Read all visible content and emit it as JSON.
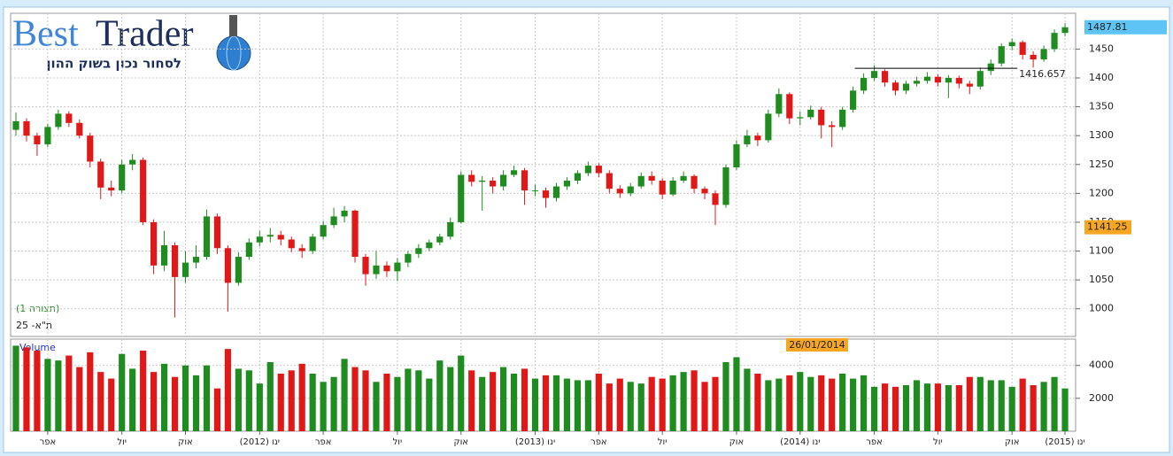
{
  "logo": {
    "brand_part1": "Best",
    "brand_part2": "Trader",
    "slogan": "לסחור נכון בשוק ההון"
  },
  "chart_data": {
    "type": "candlestick",
    "series_label": "(תצורה 1)",
    "instrument": "ת\"א- 25",
    "up_color": "#1e8c1e",
    "down_color": "#e01818",
    "grid": true,
    "categories": [
      null,
      null,
      null,
      "אפר",
      null,
      null,
      null,
      null,
      null,
      null,
      "יול",
      null,
      null,
      null,
      null,
      null,
      "אוק",
      null,
      null,
      null,
      null,
      null,
      null,
      "(2012) ינו",
      null,
      null,
      null,
      null,
      null,
      "אפר",
      null,
      null,
      null,
      null,
      null,
      null,
      "יול",
      null,
      null,
      null,
      null,
      null,
      "אוק",
      null,
      null,
      null,
      null,
      null,
      null,
      "(2013) ינו",
      null,
      null,
      null,
      null,
      null,
      "אפר",
      null,
      null,
      null,
      null,
      null,
      "יול",
      null,
      null,
      null,
      null,
      null,
      null,
      "אוק",
      null,
      null,
      null,
      null,
      null,
      "(2014) ינו",
      null,
      null,
      null,
      null,
      null,
      null,
      "אפר",
      null,
      null,
      null,
      null,
      null,
      "יול",
      null,
      null,
      null,
      null,
      null,
      null,
      "אוק",
      null,
      null,
      null,
      null,
      "(2015) ינו"
    ],
    "open": [
      1310,
      1325,
      1300,
      1285,
      1315,
      1338,
      1322,
      1300,
      1255,
      1210,
      1205,
      1250,
      1258,
      1150,
      1075,
      1110,
      1055,
      1080,
      1090,
      1160,
      1105,
      1045,
      1090,
      1115,
      1125,
      1128,
      1120,
      1105,
      1100,
      1125,
      1145,
      1160,
      1170,
      1090,
      1060,
      1075,
      1065,
      1080,
      1095,
      1105,
      1115,
      1125,
      1150,
      1232,
      1220,
      1222,
      1212,
      1232,
      1240,
      1205,
      1205,
      1192,
      1212,
      1222,
      1235,
      1248,
      1235,
      1208,
      1200,
      1212,
      1230,
      1222,
      1198,
      1222,
      1230,
      1208,
      1200,
      1180,
      1245,
      1285,
      1300,
      1292,
      1338,
      1372,
      1330,
      1332,
      1345,
      1318,
      1315,
      1345,
      1378,
      1400,
      1412,
      1392,
      1378,
      1390,
      1395,
      1402,
      1392,
      1400,
      1390,
      1385,
      1412,
      1425,
      1455,
      1462,
      1440,
      1432,
      1450,
      1478
    ],
    "high": [
      1340,
      1330,
      1305,
      1320,
      1345,
      1342,
      1328,
      1305,
      1260,
      1222,
      1258,
      1268,
      1262,
      1155,
      1135,
      1115,
      1100,
      1110,
      1172,
      1165,
      1110,
      1098,
      1122,
      1135,
      1140,
      1135,
      1125,
      1112,
      1130,
      1152,
      1175,
      1178,
      1172,
      1095,
      1100,
      1082,
      1088,
      1100,
      1112,
      1120,
      1130,
      1158,
      1238,
      1240,
      1230,
      1228,
      1240,
      1248,
      1244,
      1215,
      1210,
      1218,
      1228,
      1240,
      1255,
      1252,
      1240,
      1214,
      1218,
      1236,
      1238,
      1226,
      1228,
      1238,
      1233,
      1212,
      1205,
      1250,
      1292,
      1310,
      1305,
      1345,
      1382,
      1375,
      1342,
      1352,
      1350,
      1325,
      1350,
      1385,
      1408,
      1422,
      1415,
      1396,
      1395,
      1402,
      1410,
      1406,
      1405,
      1404,
      1395,
      1418,
      1432,
      1460,
      1468,
      1465,
      1446,
      1456,
      1484,
      1495
    ],
    "low": [
      1300,
      1290,
      1265,
      1280,
      1310,
      1315,
      1295,
      1245,
      1190,
      1195,
      1200,
      1240,
      1145,
      1060,
      1065,
      985,
      1045,
      1070,
      1085,
      1095,
      995,
      1040,
      1085,
      1108,
      1115,
      1110,
      1098,
      1088,
      1095,
      1120,
      1140,
      1150,
      1080,
      1040,
      1052,
      1055,
      1048,
      1072,
      1088,
      1100,
      1110,
      1120,
      1148,
      1212,
      1170,
      1200,
      1205,
      1228,
      1180,
      1195,
      1175,
      1186,
      1206,
      1216,
      1230,
      1228,
      1200,
      1192,
      1195,
      1208,
      1215,
      1190,
      1195,
      1218,
      1200,
      1190,
      1145,
      1175,
      1240,
      1280,
      1282,
      1288,
      1332,
      1320,
      1318,
      1328,
      1295,
      1280,
      1310,
      1340,
      1372,
      1395,
      1385,
      1370,
      1372,
      1385,
      1390,
      1385,
      1365,
      1382,
      1372,
      1380,
      1405,
      1420,
      1448,
      1432,
      1418,
      1428,
      1445,
      1472
    ],
    "close": [
      1325,
      1300,
      1285,
      1315,
      1338,
      1322,
      1300,
      1255,
      1210,
      1205,
      1250,
      1258,
      1150,
      1075,
      1110,
      1055,
      1080,
      1090,
      1160,
      1105,
      1045,
      1090,
      1115,
      1125,
      1128,
      1120,
      1105,
      1100,
      1125,
      1145,
      1160,
      1170,
      1090,
      1060,
      1075,
      1065,
      1080,
      1095,
      1105,
      1115,
      1125,
      1150,
      1232,
      1220,
      1222,
      1212,
      1232,
      1240,
      1205,
      1205,
      1192,
      1212,
      1222,
      1235,
      1248,
      1235,
      1208,
      1200,
      1212,
      1230,
      1222,
      1198,
      1222,
      1230,
      1208,
      1200,
      1180,
      1245,
      1285,
      1300,
      1292,
      1338,
      1372,
      1330,
      1332,
      1345,
      1318,
      1315,
      1345,
      1378,
      1400,
      1412,
      1392,
      1378,
      1390,
      1395,
      1402,
      1392,
      1400,
      1390,
      1385,
      1412,
      1425,
      1455,
      1462,
      1440,
      1432,
      1450,
      1478,
      1487.81
    ],
    "ylim": [
      952,
      1512
    ],
    "yticks": [
      1000,
      1050,
      1100,
      1150,
      1200,
      1250,
      1300,
      1350,
      1400,
      1450
    ],
    "level": 1416.657,
    "crosshair_price": 1141.25,
    "crosshair_date": "26/01/2014",
    "volume": {
      "name": "Volume",
      "values": [
        5200,
        5100,
        4900,
        4400,
        4300,
        4600,
        3900,
        4800,
        3600,
        3200,
        4700,
        3800,
        4900,
        3600,
        4100,
        3300,
        4000,
        3400,
        4000,
        2600,
        5000,
        3800,
        3700,
        2900,
        4200,
        3500,
        3700,
        4100,
        3500,
        3000,
        3300,
        4400,
        3900,
        3700,
        3000,
        3500,
        3300,
        3800,
        3700,
        3200,
        4300,
        3900,
        4600,
        3700,
        3300,
        3600,
        3900,
        3500,
        3800,
        3200,
        3400,
        3400,
        3200,
        3100,
        3100,
        3500,
        2900,
        3200,
        3000,
        2900,
        3300,
        3200,
        3400,
        3600,
        3700,
        3000,
        3300,
        4200,
        4500,
        3800,
        3500,
        3100,
        3200,
        3400,
        3600,
        3300,
        3400,
        3200,
        3500,
        3200,
        3400,
        2700,
        2900,
        2700,
        2800,
        3100,
        2900,
        2900,
        2800,
        2800,
        3300,
        3300,
        3100,
        3100,
        2700,
        3200,
        2800,
        3000,
        3300,
        2600
      ],
      "ylim": [
        0,
        5600
      ],
      "yticks": [
        2000,
        4000
      ]
    }
  }
}
